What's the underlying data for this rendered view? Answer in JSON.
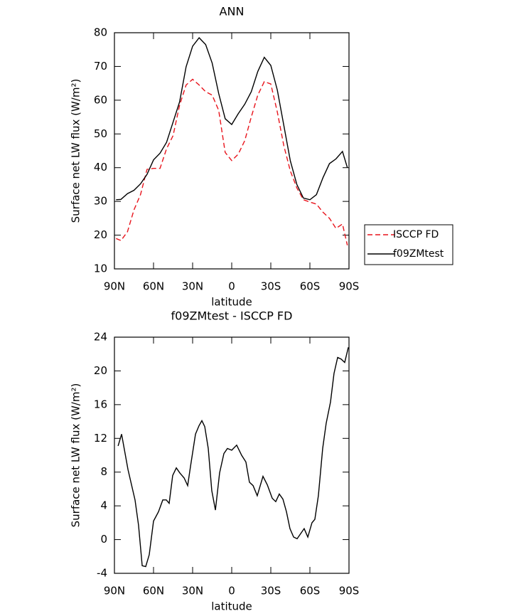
{
  "chart_data": [
    {
      "type": "line",
      "title": "ANN",
      "xlabel": "latitude",
      "ylabel": "Surface net LW flux (W/m²)",
      "x": [
        88.75,
        85,
        80,
        75,
        70,
        65,
        60,
        55,
        50,
        45,
        40,
        35,
        30,
        25,
        20,
        15,
        10,
        5,
        0,
        -5,
        -10,
        -15,
        -20,
        -25,
        -30,
        -35,
        -40,
        -45,
        -50,
        -55,
        -60,
        -65,
        -70,
        -75,
        -80,
        -85,
        -88.75
      ],
      "xlim": [
        90,
        -90
      ],
      "xticks": [
        {
          "value": 90,
          "label": "90N"
        },
        {
          "value": 60,
          "label": "60N"
        },
        {
          "value": 30,
          "label": "30N"
        },
        0,
        {
          "value": -30,
          "label": "30S"
        },
        {
          "value": -60,
          "label": "60S"
        },
        {
          "value": -90,
          "label": "90S"
        }
      ],
      "ylim": [
        10,
        80
      ],
      "yticks": [
        10,
        20,
        30,
        40,
        50,
        60,
        70,
        80
      ],
      "legend": "right",
      "series": [
        {
          "name": "ISCCP FD",
          "color": "#e8141c",
          "dashed": true,
          "values": [
            19.0,
            18.4,
            21,
            27.5,
            32,
            39.5,
            39.8,
            39.8,
            45.6,
            49.5,
            58.5,
            64.5,
            66.2,
            64.5,
            62.5,
            61.5,
            57,
            44.5,
            42.1,
            44,
            48,
            55,
            61.5,
            65.5,
            64.8,
            56.5,
            46.5,
            39,
            34,
            30.5,
            29.8,
            29.2,
            26.8,
            25,
            22,
            23.3,
            17
          ]
        },
        {
          "name": "f09ZMtest",
          "color": "#000000",
          "dashed": false,
          "values": [
            30.5,
            30.6,
            32.3,
            33.3,
            35.2,
            38,
            42.3,
            44.3,
            47.5,
            53.5,
            59.5,
            69.9,
            76,
            78.5,
            76.5,
            71,
            62,
            54.5,
            52.8,
            56,
            58.8,
            62.5,
            68.5,
            72.7,
            70.3,
            63,
            52.5,
            42,
            35,
            31,
            30.5,
            32,
            37,
            41.2,
            42.6,
            44.8,
            40
          ]
        }
      ]
    },
    {
      "type": "line",
      "title": "f09ZMtest - ISCCP FD",
      "xlabel": "latitude",
      "ylabel": "Surface net LW flux (W/m²)",
      "x": [
        87.2,
        84.5,
        79.6,
        74.2,
        71.5,
        68.7,
        66,
        63.3,
        60,
        56.2,
        52.9,
        50.2,
        48,
        45.3,
        42.5,
        39.8,
        36.5,
        33.8,
        31.6,
        27.8,
        25.1,
        22.9,
        20.7,
        18,
        15.3,
        12.5,
        9.3,
        6,
        3.3,
        0,
        -3.8,
        -7.6,
        -10.9,
        -13.6,
        -16.4,
        -19.6,
        -24,
        -27.3,
        -31.1,
        -33.8,
        -36.5,
        -39.3,
        -42,
        -44.7,
        -47.5,
        -50.2,
        -52.9,
        -55.6,
        -58.4,
        -61.6,
        -63.8,
        -66.5,
        -69.8,
        -72.5,
        -75.8,
        -78.5,
        -81.3,
        -84,
        -86.7,
        -89.5
      ],
      "xlim": [
        90,
        -90
      ],
      "xticks": [
        {
          "value": 90,
          "label": "90N"
        },
        {
          "value": 60,
          "label": "60N"
        },
        {
          "value": 30,
          "label": "30N"
        },
        0,
        {
          "value": -30,
          "label": "30S"
        },
        {
          "value": -60,
          "label": "60S"
        },
        {
          "value": -90,
          "label": "90S"
        }
      ],
      "ylim": [
        -4,
        24
      ],
      "yticks": [
        -4,
        0,
        4,
        8,
        12,
        16,
        20,
        24
      ],
      "series": [
        {
          "name": "f09ZMtest - ISCCP FD",
          "color": "#000000",
          "dashed": false,
          "values": [
            11.1,
            12.5,
            8.3,
            4.7,
            1.7,
            -3.1,
            -3.2,
            -1.8,
            2.2,
            3.3,
            4.7,
            4.7,
            4.3,
            7.6,
            8.5,
            7.9,
            7.3,
            6.4,
            8.7,
            12.5,
            13.5,
            14.1,
            13.4,
            10.8,
            5.8,
            3.5,
            7.9,
            10.2,
            10.8,
            10.6,
            11.2,
            10,
            9.2,
            6.8,
            6.4,
            5.2,
            7.5,
            6.5,
            4.9,
            4.5,
            5.4,
            4.8,
            3.3,
            1.3,
            0.3,
            0.1,
            0.7,
            1.3,
            0.3,
            2,
            2.4,
            5.2,
            10.8,
            13.8,
            16.3,
            19.7,
            21.6,
            21.4,
            21,
            22.8
          ]
        }
      ]
    }
  ]
}
